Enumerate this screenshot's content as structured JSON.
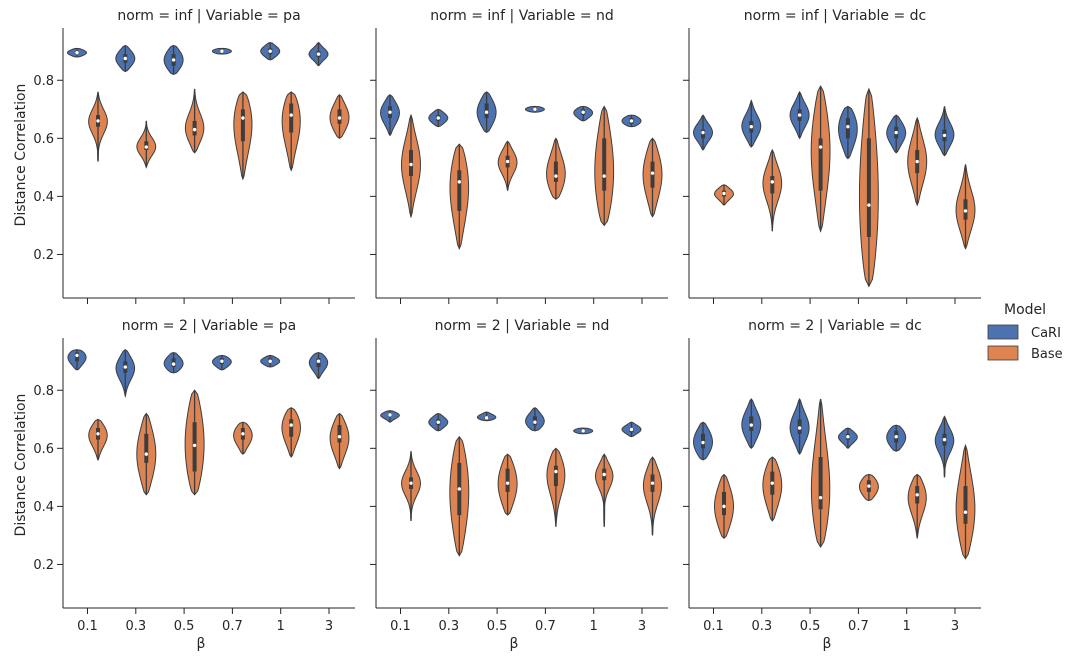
{
  "chart_data": {
    "type": "violin",
    "ylabel": "Distance Correlation",
    "xlabel": "β",
    "categories": [
      "0.1",
      "0.3",
      "0.5",
      "0.7",
      "1",
      "3"
    ],
    "ylim": [
      0.05,
      0.98
    ],
    "yticks": [
      0.2,
      0.4,
      0.6,
      0.8
    ],
    "legend": {
      "title": "Model",
      "placement": "right",
      "entries": [
        {
          "name": "CaRI",
          "color": "#4c72b0"
        },
        {
          "name": "Base",
          "color": "#dd8452"
        }
      ]
    },
    "panels": [
      {
        "title": "norm = inf | Variable = pa",
        "series": [
          {
            "name": "CaRI",
            "violins": [
              {
                "median": 0.895,
                "min": 0.88,
                "max": 0.91,
                "q1": 0.89,
                "q3": 0.9
              },
              {
                "median": 0.875,
                "min": 0.83,
                "max": 0.92,
                "q1": 0.86,
                "q3": 0.89
              },
              {
                "median": 0.87,
                "min": 0.82,
                "max": 0.92,
                "q1": 0.85,
                "q3": 0.89
              },
              {
                "median": 0.9,
                "min": 0.89,
                "max": 0.91,
                "q1": 0.895,
                "q3": 0.905
              },
              {
                "median": 0.9,
                "min": 0.87,
                "max": 0.93,
                "q1": 0.89,
                "q3": 0.91
              },
              {
                "median": 0.89,
                "min": 0.85,
                "max": 0.93,
                "q1": 0.88,
                "q3": 0.9
              }
            ]
          },
          {
            "name": "Base",
            "violins": [
              {
                "median": 0.66,
                "min": 0.52,
                "max": 0.76,
                "q1": 0.64,
                "q3": 0.68
              },
              {
                "median": 0.57,
                "min": 0.5,
                "max": 0.66,
                "q1": 0.56,
                "q3": 0.59
              },
              {
                "median": 0.63,
                "min": 0.55,
                "max": 0.77,
                "q1": 0.61,
                "q3": 0.66
              },
              {
                "median": 0.67,
                "min": 0.46,
                "max": 0.76,
                "q1": 0.59,
                "q3": 0.7
              },
              {
                "median": 0.68,
                "min": 0.49,
                "max": 0.76,
                "q1": 0.62,
                "q3": 0.72
              },
              {
                "median": 0.67,
                "min": 0.6,
                "max": 0.75,
                "q1": 0.65,
                "q3": 0.7
              }
            ]
          }
        ]
      },
      {
        "title": "norm = inf | Variable = nd",
        "series": [
          {
            "name": "CaRI",
            "violins": [
              {
                "median": 0.69,
                "min": 0.61,
                "max": 0.75,
                "q1": 0.67,
                "q3": 0.71
              },
              {
                "median": 0.67,
                "min": 0.64,
                "max": 0.7,
                "q1": 0.66,
                "q3": 0.68
              },
              {
                "median": 0.69,
                "min": 0.62,
                "max": 0.76,
                "q1": 0.67,
                "q3": 0.72
              },
              {
                "median": 0.7,
                "min": 0.69,
                "max": 0.71,
                "q1": 0.695,
                "q3": 0.705
              },
              {
                "median": 0.69,
                "min": 0.66,
                "max": 0.71,
                "q1": 0.68,
                "q3": 0.7
              },
              {
                "median": 0.66,
                "min": 0.64,
                "max": 0.68,
                "q1": 0.65,
                "q3": 0.67
              }
            ]
          },
          {
            "name": "Base",
            "violins": [
              {
                "median": 0.51,
                "min": 0.33,
                "max": 0.68,
                "q1": 0.47,
                "q3": 0.56
              },
              {
                "median": 0.45,
                "min": 0.22,
                "max": 0.58,
                "q1": 0.35,
                "q3": 0.49
              },
              {
                "median": 0.52,
                "min": 0.42,
                "max": 0.59,
                "q1": 0.5,
                "q3": 0.54
              },
              {
                "median": 0.47,
                "min": 0.39,
                "max": 0.6,
                "q1": 0.45,
                "q3": 0.52
              },
              {
                "median": 0.47,
                "min": 0.3,
                "max": 0.71,
                "q1": 0.42,
                "q3": 0.6
              },
              {
                "median": 0.48,
                "min": 0.33,
                "max": 0.6,
                "q1": 0.43,
                "q3": 0.52
              }
            ]
          }
        ]
      },
      {
        "title": "norm = inf | Variable = dc",
        "series": [
          {
            "name": "CaRI",
            "violins": [
              {
                "median": 0.62,
                "min": 0.56,
                "max": 0.68,
                "q1": 0.6,
                "q3": 0.63
              },
              {
                "median": 0.64,
                "min": 0.57,
                "max": 0.73,
                "q1": 0.62,
                "q3": 0.66
              },
              {
                "median": 0.68,
                "min": 0.6,
                "max": 0.76,
                "q1": 0.66,
                "q3": 0.7
              },
              {
                "median": 0.64,
                "min": 0.53,
                "max": 0.71,
                "q1": 0.6,
                "q3": 0.67
              },
              {
                "median": 0.62,
                "min": 0.55,
                "max": 0.68,
                "q1": 0.6,
                "q3": 0.64
              },
              {
                "median": 0.61,
                "min": 0.54,
                "max": 0.71,
                "q1": 0.59,
                "q3": 0.63
              }
            ]
          },
          {
            "name": "Base",
            "violins": [
              {
                "median": 0.41,
                "min": 0.37,
                "max": 0.44,
                "q1": 0.4,
                "q3": 0.42
              },
              {
                "median": 0.45,
                "min": 0.28,
                "max": 0.56,
                "q1": 0.41,
                "q3": 0.47
              },
              {
                "median": 0.57,
                "min": 0.28,
                "max": 0.78,
                "q1": 0.42,
                "q3": 0.6
              },
              {
                "median": 0.37,
                "min": 0.09,
                "max": 0.77,
                "q1": 0.26,
                "q3": 0.6
              },
              {
                "median": 0.52,
                "min": 0.37,
                "max": 0.67,
                "q1": 0.48,
                "q3": 0.56
              },
              {
                "median": 0.35,
                "min": 0.22,
                "max": 0.51,
                "q1": 0.32,
                "q3": 0.39
              }
            ]
          }
        ]
      },
      {
        "title": "norm = 2 | Variable = pa",
        "series": [
          {
            "name": "CaRI",
            "violins": [
              {
                "median": 0.92,
                "min": 0.87,
                "max": 0.94,
                "q1": 0.9,
                "q3": 0.93
              },
              {
                "median": 0.88,
                "min": 0.78,
                "max": 0.94,
                "q1": 0.86,
                "q3": 0.9
              },
              {
                "median": 0.89,
                "min": 0.86,
                "max": 0.93,
                "q1": 0.88,
                "q3": 0.91
              },
              {
                "median": 0.9,
                "min": 0.87,
                "max": 0.92,
                "q1": 0.89,
                "q3": 0.91
              },
              {
                "median": 0.9,
                "min": 0.88,
                "max": 0.92,
                "q1": 0.895,
                "q3": 0.91
              },
              {
                "median": 0.9,
                "min": 0.84,
                "max": 0.93,
                "q1": 0.88,
                "q3": 0.91
              }
            ]
          },
          {
            "name": "Base",
            "violins": [
              {
                "median": 0.65,
                "min": 0.56,
                "max": 0.7,
                "q1": 0.63,
                "q3": 0.67
              },
              {
                "median": 0.58,
                "min": 0.44,
                "max": 0.72,
                "q1": 0.55,
                "q3": 0.65
              },
              {
                "median": 0.61,
                "min": 0.44,
                "max": 0.8,
                "q1": 0.52,
                "q3": 0.69
              },
              {
                "median": 0.65,
                "min": 0.58,
                "max": 0.69,
                "q1": 0.63,
                "q3": 0.67
              },
              {
                "median": 0.68,
                "min": 0.57,
                "max": 0.74,
                "q1": 0.64,
                "q3": 0.7
              },
              {
                "median": 0.64,
                "min": 0.53,
                "max": 0.72,
                "q1": 0.62,
                "q3": 0.68
              }
            ]
          }
        ]
      },
      {
        "title": "norm = 2 | Variable = nd",
        "series": [
          {
            "name": "CaRI",
            "violins": [
              {
                "median": 0.715,
                "min": 0.69,
                "max": 0.73,
                "q1": 0.71,
                "q3": 0.72
              },
              {
                "median": 0.69,
                "min": 0.66,
                "max": 0.72,
                "q1": 0.68,
                "q3": 0.7
              },
              {
                "median": 0.705,
                "min": 0.695,
                "max": 0.725,
                "q1": 0.7,
                "q3": 0.71
              },
              {
                "median": 0.69,
                "min": 0.66,
                "max": 0.74,
                "q1": 0.68,
                "q3": 0.71
              },
              {
                "median": 0.66,
                "min": 0.65,
                "max": 0.67,
                "q1": 0.655,
                "q3": 0.665
              },
              {
                "median": 0.665,
                "min": 0.64,
                "max": 0.69,
                "q1": 0.655,
                "q3": 0.67
              }
            ]
          },
          {
            "name": "Base",
            "violins": [
              {
                "median": 0.48,
                "min": 0.35,
                "max": 0.59,
                "q1": 0.46,
                "q3": 0.5
              },
              {
                "median": 0.46,
                "min": 0.23,
                "max": 0.64,
                "q1": 0.37,
                "q3": 0.55
              },
              {
                "median": 0.48,
                "min": 0.37,
                "max": 0.58,
                "q1": 0.45,
                "q3": 0.53
              },
              {
                "median": 0.52,
                "min": 0.33,
                "max": 0.6,
                "q1": 0.47,
                "q3": 0.54
              },
              {
                "median": 0.51,
                "min": 0.33,
                "max": 0.58,
                "q1": 0.49,
                "q3": 0.53
              },
              {
                "median": 0.48,
                "min": 0.3,
                "max": 0.57,
                "q1": 0.45,
                "q3": 0.51
              }
            ]
          }
        ]
      },
      {
        "title": "norm = 2 | Variable = dc",
        "series": [
          {
            "name": "CaRI",
            "violins": [
              {
                "median": 0.62,
                "min": 0.56,
                "max": 0.69,
                "q1": 0.6,
                "q3": 0.65
              },
              {
                "median": 0.68,
                "min": 0.6,
                "max": 0.77,
                "q1": 0.66,
                "q3": 0.71
              },
              {
                "median": 0.67,
                "min": 0.58,
                "max": 0.77,
                "q1": 0.65,
                "q3": 0.7
              },
              {
                "median": 0.64,
                "min": 0.6,
                "max": 0.67,
                "q1": 0.63,
                "q3": 0.65
              },
              {
                "median": 0.64,
                "min": 0.59,
                "max": 0.68,
                "q1": 0.62,
                "q3": 0.66
              },
              {
                "median": 0.63,
                "min": 0.5,
                "max": 0.71,
                "q1": 0.61,
                "q3": 0.65
              }
            ]
          },
          {
            "name": "Base",
            "violins": [
              {
                "median": 0.4,
                "min": 0.29,
                "max": 0.51,
                "q1": 0.37,
                "q3": 0.45
              },
              {
                "median": 0.48,
                "min": 0.35,
                "max": 0.57,
                "q1": 0.44,
                "q3": 0.52
              },
              {
                "median": 0.43,
                "min": 0.26,
                "max": 0.77,
                "q1": 0.39,
                "q3": 0.57
              },
              {
                "median": 0.47,
                "min": 0.42,
                "max": 0.51,
                "q1": 0.45,
                "q3": 0.49
              },
              {
                "median": 0.44,
                "min": 0.29,
                "max": 0.51,
                "q1": 0.41,
                "q3": 0.47
              },
              {
                "median": 0.38,
                "min": 0.22,
                "max": 0.61,
                "q1": 0.34,
                "q3": 0.47
              }
            ]
          }
        ]
      }
    ]
  }
}
